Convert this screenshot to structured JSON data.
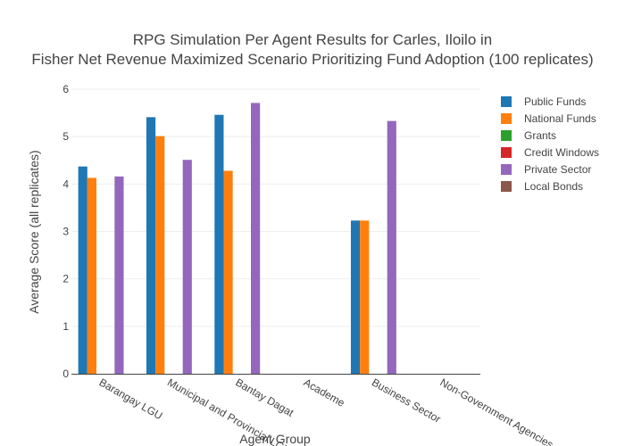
{
  "chart_data": {
    "type": "bar",
    "title_line1": "RPG Simulation Per Agent Results for Carles, Iloilo in",
    "title_line2": "Fisher Net Revenue Maximized Scenario Prioritizing Fund Adoption (100 replicates)",
    "xlabel": "Agent Group",
    "ylabel": "Average Score (all replicates)",
    "ylim": [
      0,
      6
    ],
    "yticks": [
      "0",
      "1",
      "2",
      "3",
      "4",
      "5",
      "6"
    ],
    "grid": true,
    "legend_position": "top-right",
    "categories": [
      "Barangay LGU",
      "Municipal and Provincial LGU",
      "Bantay Dagat",
      "Academe",
      "Business Sector",
      "Non-Government Agencies"
    ],
    "series": [
      {
        "name": "Public Funds",
        "color": "#1f77b4",
        "values": [
          4.37,
          5.41,
          5.46,
          0,
          3.23,
          0
        ]
      },
      {
        "name": "National Funds",
        "color": "#ff7f0e",
        "values": [
          4.13,
          5.01,
          4.28,
          0,
          3.23,
          0
        ]
      },
      {
        "name": "Grants",
        "color": "#2ca02c",
        "values": [
          0,
          0,
          0,
          0,
          0,
          0
        ]
      },
      {
        "name": "Credit Windows",
        "color": "#d62728",
        "values": [
          0,
          0,
          0,
          0,
          0,
          0
        ]
      },
      {
        "name": "Private Sector",
        "color": "#9467bd",
        "values": [
          4.16,
          4.51,
          5.71,
          0,
          5.33,
          0
        ]
      },
      {
        "name": "Local Bonds",
        "color": "#8c564b",
        "values": [
          0,
          0,
          0,
          0,
          0,
          0
        ]
      }
    ]
  }
}
